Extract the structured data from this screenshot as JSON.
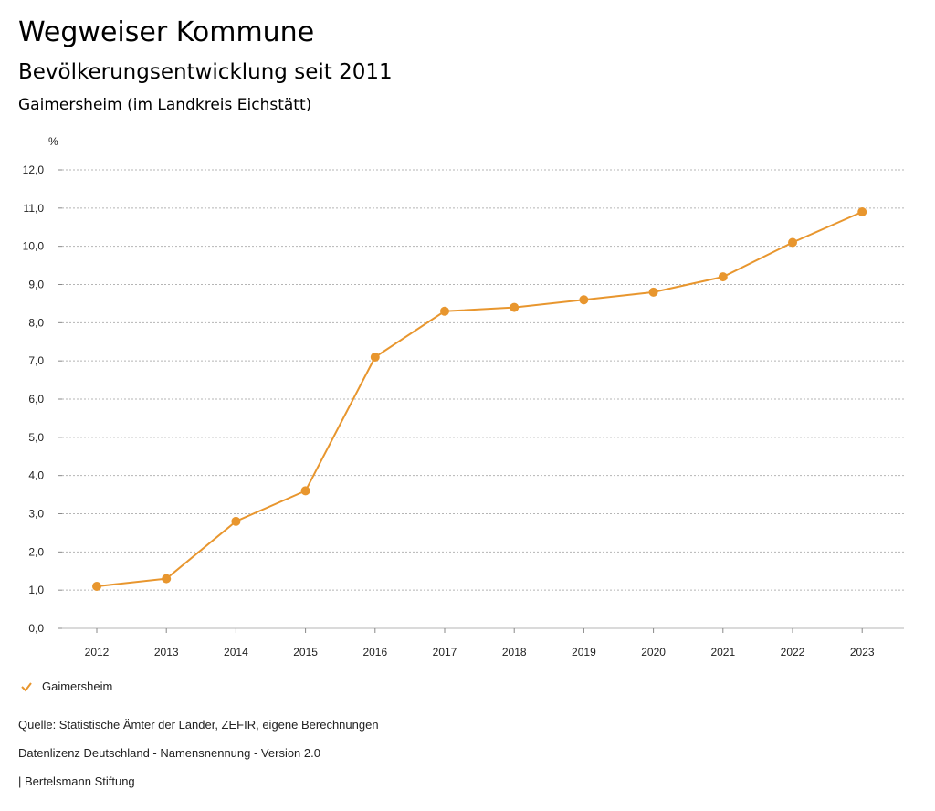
{
  "header": {
    "title": "Wegweiser Kommune",
    "subtitle": "Bevölkerungsentwicklung seit 2011",
    "place": "Gaimersheim (im Landkreis Eichstätt)"
  },
  "chart_data": {
    "type": "line",
    "x": [
      "2012",
      "2013",
      "2014",
      "2015",
      "2016",
      "2017",
      "2018",
      "2019",
      "2020",
      "2021",
      "2022",
      "2023"
    ],
    "series": [
      {
        "name": "Gaimersheim",
        "color": "#e8962e",
        "values": [
          1.1,
          1.3,
          2.8,
          3.6,
          7.1,
          8.3,
          8.4,
          8.6,
          8.8,
          9.2,
          10.1,
          10.9
        ]
      }
    ],
    "ylabel": "%",
    "ylim": [
      0,
      12
    ],
    "yticks": [
      "0,0",
      "1,0",
      "2,0",
      "3,0",
      "4,0",
      "5,0",
      "6,0",
      "7,0",
      "8,0",
      "9,0",
      "10,0",
      "11,0",
      "12,0"
    ],
    "grid": true,
    "legend": "bottom-left"
  },
  "footer": {
    "source": "Quelle: Statistische Ämter der Länder, ZEFIR, eigene Berechnungen",
    "license": "Datenlizenz Deutschland - Namensnennung - Version 2.0",
    "publisher": "| Bertelsmann Stiftung"
  }
}
